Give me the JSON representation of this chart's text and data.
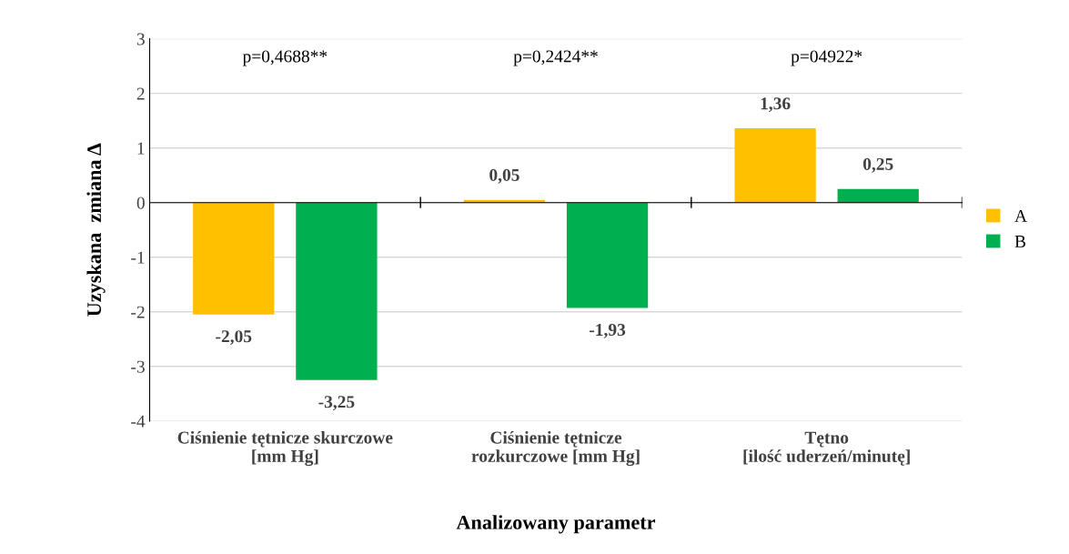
{
  "chart_data": {
    "type": "bar",
    "xlabel": "Analizowany parametr",
    "ylabel": "Uzyskana  zmiana Δ",
    "categories": [
      "Ciśnienie tętnicze skurczowe\n[mm Hg]",
      "Ciśnienie tętnicze\nrozkurczowe [mm Hg]",
      "Tętno\n[ilość uderzeń/minutę]"
    ],
    "series": [
      {
        "name": "A",
        "color": "#ffc000",
        "values": [
          -2.05,
          0.05,
          1.36
        ],
        "value_labels": [
          "-2,05",
          "0,05",
          "1,36"
        ]
      },
      {
        "name": "B",
        "color": "#00b050",
        "values": [
          -3.25,
          -1.93,
          0.25
        ],
        "value_labels": [
          "-3,25",
          "-1,93",
          "0,25"
        ]
      }
    ],
    "ylim": [
      -4,
      3
    ],
    "yticks": [
      -4,
      -3,
      -2,
      -1,
      0,
      1,
      2,
      3
    ],
    "grid": "y",
    "legend": "right",
    "annotations": [
      "p=0,4688**",
      "p=0,2424**",
      "p=04922*"
    ]
  }
}
